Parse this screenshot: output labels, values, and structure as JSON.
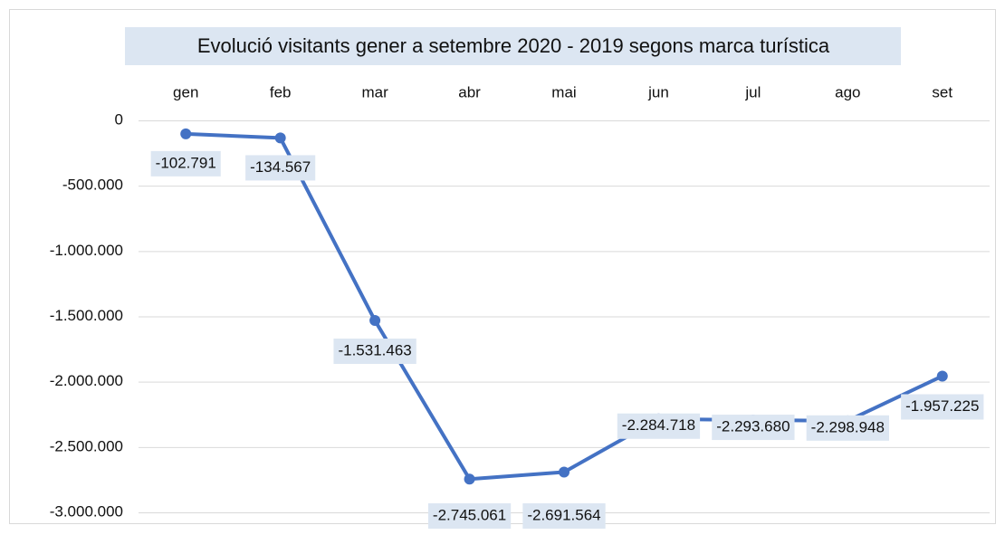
{
  "chart_data": {
    "type": "line",
    "title": "Evolució visitants gener a setembre 2020 - 2019 segons marca turística",
    "categories": [
      "gen",
      "feb",
      "mar",
      "abr",
      "mai",
      "jun",
      "jul",
      "ago",
      "set"
    ],
    "series": [
      {
        "color": "#4472c4",
        "values": [
          -102791,
          -134567,
          -1531463,
          -2745061,
          -2691564,
          -2284718,
          -2293680,
          -2298948,
          -1957225
        ],
        "value_labels": [
          "-102.791",
          "-134.567",
          "-1.531.463",
          "-2.745.061",
          "-2.691.564",
          "-2.284.718",
          "-2.293.680",
          "-2.298.948",
          "-1.957.225"
        ]
      }
    ],
    "ylim": [
      -3000000,
      0
    ],
    "yticks": [
      0,
      {
        "value": -500000,
        "label": "-500.000"
      },
      {
        "value": -1000000,
        "label": "-1.000.000"
      },
      {
        "value": -1500000,
        "label": "-1.500.000"
      },
      {
        "value": -2000000,
        "label": "-2.000.000"
      },
      {
        "value": -2500000,
        "label": "-2.500.000"
      },
      {
        "value": -3000000,
        "label": "-3.000.000"
      }
    ],
    "grid": true
  }
}
